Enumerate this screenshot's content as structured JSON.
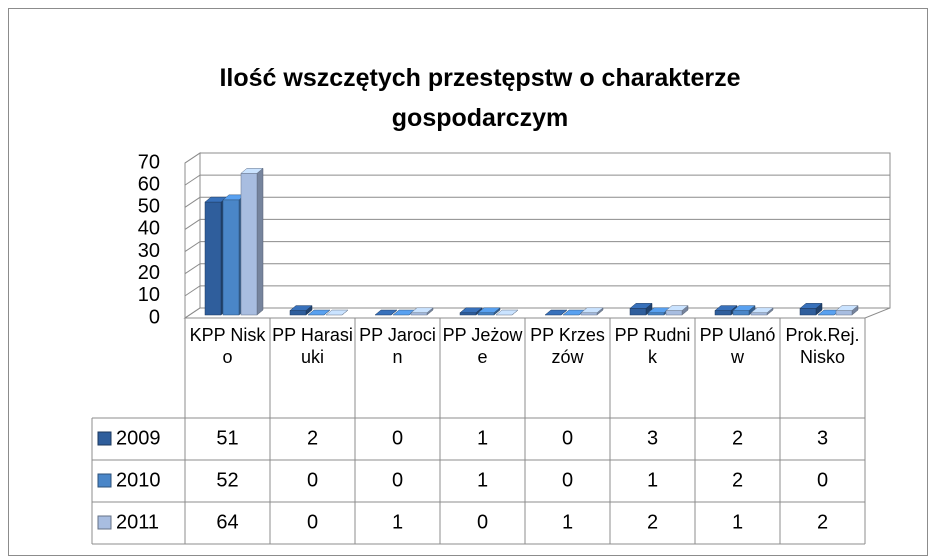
{
  "chart_data": {
    "type": "bar3d",
    "title": "Ilość wszczętych przestępstw o charakterze gospodarczym",
    "categories": [
      "KPP Nisko",
      "PP Harasiuki",
      "PP Jarocin",
      "PP Jeżowe",
      "PP Krzeszów",
      "PP Rudnik",
      "PP Ulanów",
      "Prok.Rej.Nisko"
    ],
    "series": [
      {
        "name": "2009",
        "color": "#2f5e9c",
        "values": [
          51,
          2,
          0,
          1,
          0,
          3,
          2,
          3
        ]
      },
      {
        "name": "2010",
        "color": "#4a86c8",
        "values": [
          52,
          0,
          0,
          1,
          0,
          1,
          2,
          0
        ]
      },
      {
        "name": "2011",
        "color": "#a8bde0",
        "values": [
          64,
          0,
          1,
          0,
          1,
          2,
          1,
          2
        ]
      }
    ],
    "ylim": [
      0,
      70
    ],
    "yticks": [
      0,
      10,
      20,
      30,
      40,
      50,
      60,
      70
    ],
    "grid": true
  }
}
